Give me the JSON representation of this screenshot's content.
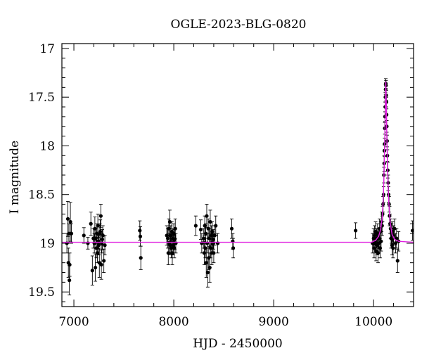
{
  "chart_data": {
    "type": "scatter",
    "title": "OGLE-2023-BLG-0820",
    "xlabel": "HJD - 2450000",
    "ylabel": "I magnitude",
    "xlim": [
      6880,
      10400
    ],
    "ylim": [
      19.65,
      16.95
    ],
    "y_inverted": true,
    "x_ticks": [
      7000,
      8000,
      9000,
      10000
    ],
    "y_ticks": [
      17,
      17.5,
      18,
      18.5,
      19,
      19.5
    ],
    "x_tick_labels": [
      "7000",
      "8000",
      "9000",
      "10000"
    ],
    "y_tick_labels": [
      "17",
      "17.5",
      "18",
      "18.5",
      "19",
      "19.5"
    ],
    "grid": false,
    "colors": {
      "points": "#000000",
      "model": "#e020e0",
      "frame": "#000000"
    },
    "model": {
      "name": "",
      "baseline_mag": 18.99,
      "peak_mag": 17.34,
      "peak_time": 10122,
      "x": [
        6880,
        9980,
        10020,
        10050,
        10070,
        10085,
        10095,
        10103,
        10110,
        10115,
        10118,
        10120,
        10122,
        10124,
        10127,
        10132,
        10140,
        10150,
        10165,
        10185,
        10210,
        10250,
        10400
      ],
      "y": [
        18.99,
        18.99,
        18.97,
        18.93,
        18.86,
        18.75,
        18.58,
        18.34,
        18.02,
        17.75,
        17.55,
        17.43,
        17.34,
        17.43,
        17.58,
        17.88,
        18.25,
        18.55,
        18.78,
        18.91,
        18.96,
        18.98,
        18.99
      ]
    },
    "series": [
      {
        "points": [
          [
            6930,
            19.0,
            0.1
          ],
          [
            6940,
            18.75,
            0.18
          ],
          [
            6945,
            19.2,
            0.15
          ],
          [
            6950,
            18.9,
            0.1
          ],
          [
            6955,
            19.38,
            0.15
          ],
          [
            6958,
            19.22,
            0.12
          ],
          [
            6965,
            18.78,
            0.2
          ],
          [
            6975,
            18.9,
            0.1
          ],
          [
            7100,
            18.92,
            0.08
          ],
          [
            7140,
            19.0,
            0.06
          ],
          [
            7170,
            18.8,
            0.12
          ],
          [
            7185,
            19.28,
            0.15
          ],
          [
            7195,
            18.95,
            0.1
          ],
          [
            7205,
            19.0,
            0.1
          ],
          [
            7210,
            18.85,
            0.12
          ],
          [
            7215,
            19.25,
            0.14
          ],
          [
            7220,
            18.95,
            0.1
          ],
          [
            7225,
            19.05,
            0.1
          ],
          [
            7230,
            18.9,
            0.1
          ],
          [
            7235,
            19.1,
            0.1
          ],
          [
            7240,
            18.82,
            0.12
          ],
          [
            7245,
            18.98,
            0.08
          ],
          [
            7250,
            19.02,
            0.1
          ],
          [
            7255,
            19.2,
            0.15
          ],
          [
            7260,
            18.9,
            0.1
          ],
          [
            7265,
            18.88,
            0.12
          ],
          [
            7270,
            18.72,
            0.12
          ],
          [
            7275,
            19.22,
            0.15
          ],
          [
            7280,
            19.0,
            0.1
          ],
          [
            7285,
            18.96,
            0.1
          ],
          [
            7290,
            18.92,
            0.1
          ],
          [
            7300,
            19.18,
            0.12
          ],
          [
            7310,
            19.02,
            0.1
          ],
          [
            7660,
            18.87,
            0.1
          ],
          [
            7665,
            18.93,
            0.1
          ],
          [
            7670,
            19.15,
            0.12
          ],
          [
            7930,
            18.92,
            0.1
          ],
          [
            7940,
            18.95,
            0.1
          ],
          [
            7945,
            19.1,
            0.12
          ],
          [
            7950,
            18.85,
            0.1
          ],
          [
            7955,
            19.0,
            0.1
          ],
          [
            7960,
            18.78,
            0.12
          ],
          [
            7965,
            19.02,
            0.1
          ],
          [
            7970,
            18.92,
            0.1
          ],
          [
            7975,
            19.05,
            0.1
          ],
          [
            7980,
            18.88,
            0.1
          ],
          [
            7985,
            19.1,
            0.12
          ],
          [
            7990,
            18.95,
            0.1
          ],
          [
            7995,
            19.02,
            0.1
          ],
          [
            8000,
            18.9,
            0.1
          ],
          [
            8005,
            19.05,
            0.1
          ],
          [
            8010,
            18.96,
            0.1
          ],
          [
            8015,
            18.85,
            0.1
          ],
          [
            8020,
            19.0,
            0.1
          ],
          [
            8220,
            18.82,
            0.1
          ],
          [
            8270,
            18.86,
            0.1
          ],
          [
            8280,
            19.0,
            0.1
          ],
          [
            8300,
            18.95,
            0.1
          ],
          [
            8305,
            19.1,
            0.12
          ],
          [
            8310,
            18.82,
            0.1
          ],
          [
            8315,
            19.05,
            0.1
          ],
          [
            8320,
            18.9,
            0.1
          ],
          [
            8325,
            19.2,
            0.15
          ],
          [
            8330,
            18.72,
            0.12
          ],
          [
            8335,
            19.0,
            0.1
          ],
          [
            8340,
            19.3,
            0.15
          ],
          [
            8345,
            18.85,
            0.1
          ],
          [
            8350,
            19.15,
            0.12
          ],
          [
            8355,
            18.95,
            0.1
          ],
          [
            8360,
            19.25,
            0.15
          ],
          [
            8365,
            18.78,
            0.12
          ],
          [
            8370,
            19.05,
            0.1
          ],
          [
            8375,
            18.92,
            0.1
          ],
          [
            8380,
            19.1,
            0.12
          ],
          [
            8385,
            18.88,
            0.1
          ],
          [
            8390,
            19.0,
            0.1
          ],
          [
            8395,
            18.96,
            0.1
          ],
          [
            8400,
            19.1,
            0.1
          ],
          [
            8410,
            18.92,
            0.1
          ],
          [
            8420,
            18.82,
            0.1
          ],
          [
            8440,
            19.0,
            0.1
          ],
          [
            8580,
            18.85,
            0.1
          ],
          [
            8590,
            18.98,
            0.08
          ],
          [
            8595,
            19.05,
            0.1
          ],
          [
            9820,
            18.87,
            0.08
          ],
          [
            9990,
            19.0,
            0.1
          ],
          [
            10000,
            18.95,
            0.1
          ],
          [
            10005,
            19.05,
            0.1
          ],
          [
            10010,
            18.92,
            0.1
          ],
          [
            10015,
            19.0,
            0.1
          ],
          [
            10020,
            18.88,
            0.1
          ],
          [
            10025,
            19.08,
            0.1
          ],
          [
            10030,
            18.95,
            0.1
          ],
          [
            10035,
            19.02,
            0.1
          ],
          [
            10040,
            18.9,
            0.1
          ],
          [
            10045,
            19.1,
            0.1
          ],
          [
            10050,
            18.95,
            0.1
          ],
          [
            10055,
            19.0,
            0.1
          ],
          [
            10060,
            18.85,
            0.1
          ],
          [
            10065,
            19.05,
            0.1
          ],
          [
            10070,
            18.88,
            0.1
          ],
          [
            10075,
            18.98,
            0.1
          ],
          [
            10080,
            18.78,
            0.1
          ],
          [
            10085,
            18.82,
            0.1
          ],
          [
            10090,
            18.7,
            0.08
          ],
          [
            10095,
            18.6,
            0.08
          ],
          [
            10100,
            18.5,
            0.08
          ],
          [
            10103,
            18.3,
            0.08
          ],
          [
            10106,
            18.18,
            0.08
          ],
          [
            10108,
            18.05,
            0.06
          ],
          [
            10110,
            17.98,
            0.06
          ],
          [
            10112,
            17.82,
            0.06
          ],
          [
            10114,
            17.7,
            0.05
          ],
          [
            10116,
            17.6,
            0.05
          ],
          [
            10118,
            17.5,
            0.05
          ],
          [
            10120,
            17.42,
            0.05
          ],
          [
            10122,
            17.36,
            0.05
          ],
          [
            10124,
            17.38,
            0.05
          ],
          [
            10126,
            17.48,
            0.05
          ],
          [
            10128,
            17.55,
            0.05
          ],
          [
            10130,
            17.68,
            0.06
          ],
          [
            10132,
            17.8,
            0.06
          ],
          [
            10135,
            17.95,
            0.06
          ],
          [
            10138,
            18.1,
            0.06
          ],
          [
            10142,
            18.25,
            0.08
          ],
          [
            10146,
            18.38,
            0.08
          ],
          [
            10150,
            18.5,
            0.08
          ],
          [
            10155,
            18.6,
            0.08
          ],
          [
            10160,
            18.72,
            0.1
          ],
          [
            10165,
            18.8,
            0.1
          ],
          [
            10170,
            18.85,
            0.1
          ],
          [
            10175,
            18.95,
            0.1
          ],
          [
            10180,
            18.9,
            0.1
          ],
          [
            10185,
            19.02,
            0.1
          ],
          [
            10190,
            18.88,
            0.1
          ],
          [
            10195,
            19.05,
            0.1
          ],
          [
            10200,
            18.92,
            0.1
          ],
          [
            10210,
            18.85,
            0.1
          ],
          [
            10220,
            19.0,
            0.1
          ],
          [
            10230,
            18.95,
            0.1
          ],
          [
            10240,
            19.18,
            0.12
          ],
          [
            10250,
            18.98,
            0.1
          ],
          [
            10390,
            18.87,
            0.1
          ]
        ]
      }
    ]
  }
}
